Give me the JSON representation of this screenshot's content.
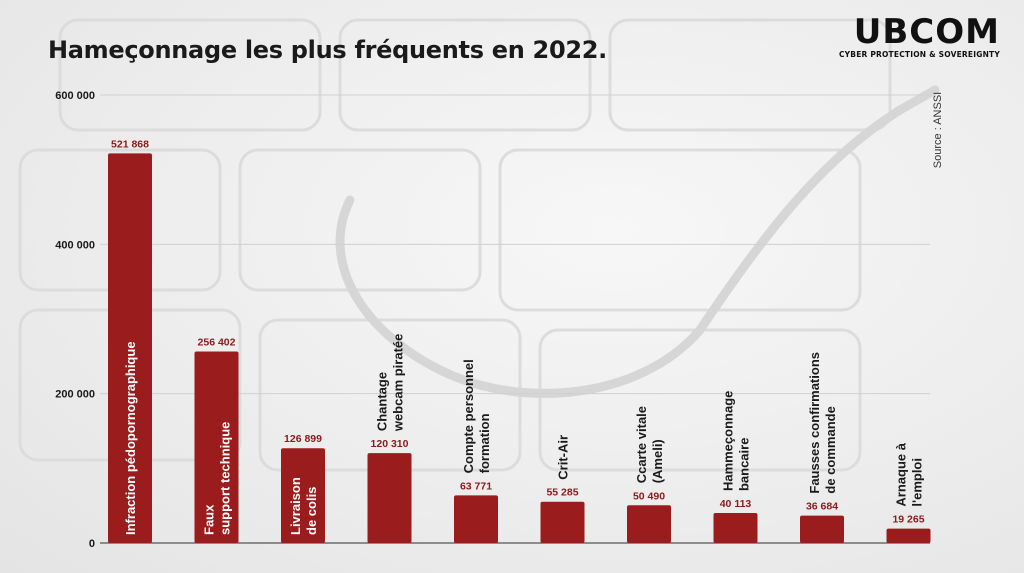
{
  "header": {
    "title": "Hameçonnage les plus fréquents en 2022.",
    "logo_name": "UBCOM",
    "logo_tagline": "CYBER PROTECTION & SOVEREIGNTY"
  },
  "source": "Source : ANSSI",
  "colors": {
    "bar": "#9b1c1c",
    "value_label": "#8b1a1a",
    "grid": "#d0d0d0",
    "inside_label": "#ffffff",
    "outside_label": "#1a1a1a"
  },
  "chart_data": {
    "type": "bar",
    "categories": [
      [
        "Infraction pédopornographique"
      ],
      [
        "Faux",
        "support technique"
      ],
      [
        "Livraison",
        "de colis"
      ],
      [
        "Chantage",
        "webcam piratée"
      ],
      [
        "Compte personnel",
        "formation"
      ],
      [
        "Crit-Air"
      ],
      [
        "Ccarte vitale",
        "(Ameli)"
      ],
      [
        "Hammeçonnage",
        "bancaire"
      ],
      [
        "Fausses confirmations",
        "de commande"
      ],
      [
        "Arnaque à",
        "l'emploi"
      ]
    ],
    "values": [
      521868,
      256402,
      126899,
      120310,
      63771,
      55285,
      50490,
      40113,
      36684,
      19265
    ],
    "value_labels": [
      "521 868",
      "256 402",
      "126 899",
      "120 310",
      "63 771",
      "55 285",
      "50 490",
      "40 113",
      "36 684",
      "19 265"
    ],
    "label_inside": [
      true,
      true,
      true,
      false,
      false,
      false,
      false,
      false,
      false,
      false
    ],
    "y_ticks": [
      0,
      200000,
      400000,
      600000
    ],
    "y_tick_labels": [
      "0",
      "200 000",
      "400 000",
      "600 000"
    ],
    "ylim": [
      0,
      600000
    ],
    "grid": true
  }
}
